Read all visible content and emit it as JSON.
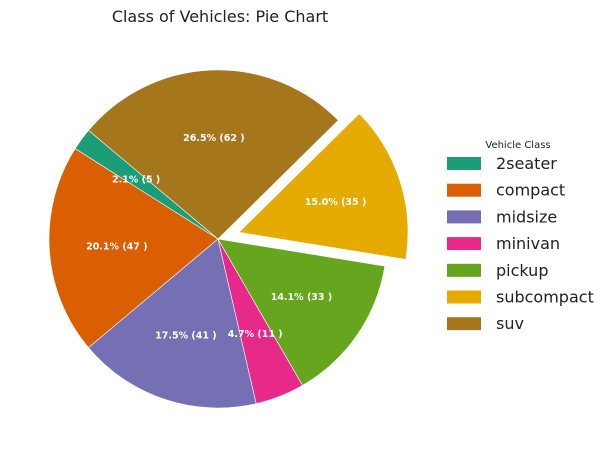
{
  "chart_data": {
    "type": "pie",
    "title": "Class of Vehicles: Pie Chart",
    "legend": {
      "title": "Vehicle Class",
      "position": "right"
    },
    "slices": [
      {
        "label": "2seater",
        "value": 5,
        "percent": 2.1,
        "pct_label": "2.1% (5 )",
        "color": "#1b9e77",
        "exploded": false
      },
      {
        "label": "compact",
        "value": 47,
        "percent": 20.1,
        "pct_label": "20.1% (47 )",
        "color": "#d95f02",
        "exploded": false
      },
      {
        "label": "midsize",
        "value": 41,
        "percent": 17.5,
        "pct_label": "17.5% (41 )",
        "color": "#7570b3",
        "exploded": false
      },
      {
        "label": "minivan",
        "value": 11,
        "percent": 4.7,
        "pct_label": "4.7% (11 )",
        "color": "#e7298a",
        "exploded": false
      },
      {
        "label": "pickup",
        "value": 33,
        "percent": 14.1,
        "pct_label": "14.1% (33 )",
        "color": "#66a61e",
        "exploded": false
      },
      {
        "label": "subcompact",
        "value": 35,
        "percent": 15.0,
        "pct_label": "15.0% (35 )",
        "color": "#e6ab02",
        "exploded": true
      },
      {
        "label": "suv",
        "value": 62,
        "percent": 26.5,
        "pct_label": "26.5% (62 )",
        "color": "#a6761d",
        "exploded": false
      }
    ]
  }
}
